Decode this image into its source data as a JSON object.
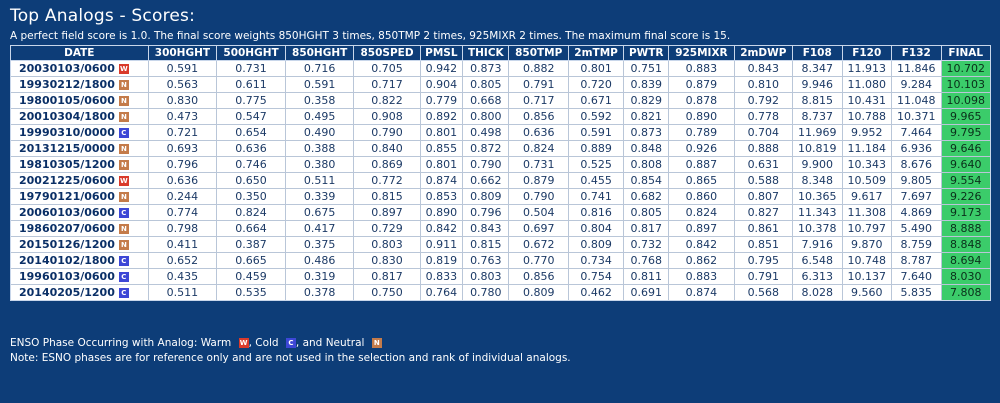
{
  "title": "Top Analogs - Scores:",
  "subtitle": "A perfect field score is 1.0. The final score weights 850HGHT 3 times, 850TMP 2 times, 925MIXR 2 times. The maximum final score is 15.",
  "columns": [
    "DATE",
    "300HGHT",
    "500HGHT",
    "850HGHT",
    "850SPED",
    "PMSL",
    "THICK",
    "850TMP",
    "2mTMP",
    "PWTR",
    "925MIXR",
    "2mDWP",
    "F108",
    "F120",
    "F132",
    "FINAL"
  ],
  "rows": [
    {
      "date": "20030103/0600",
      "phase": "W",
      "values": [
        "0.591",
        "0.731",
        "0.716",
        "0.705",
        "0.942",
        "0.873",
        "0.882",
        "0.801",
        "0.751",
        "0.883",
        "0.843",
        "8.347",
        "11.913",
        "11.846"
      ],
      "final": "10.702"
    },
    {
      "date": "19930212/1800",
      "phase": "N",
      "values": [
        "0.563",
        "0.611",
        "0.591",
        "0.717",
        "0.904",
        "0.805",
        "0.791",
        "0.720",
        "0.839",
        "0.879",
        "0.810",
        "9.946",
        "11.080",
        "9.284"
      ],
      "final": "10.103"
    },
    {
      "date": "19800105/0600",
      "phase": "N",
      "values": [
        "0.830",
        "0.775",
        "0.358",
        "0.822",
        "0.779",
        "0.668",
        "0.717",
        "0.671",
        "0.829",
        "0.878",
        "0.792",
        "8.815",
        "10.431",
        "11.048"
      ],
      "final": "10.098"
    },
    {
      "date": "20010304/1800",
      "phase": "N",
      "values": [
        "0.473",
        "0.547",
        "0.495",
        "0.908",
        "0.892",
        "0.800",
        "0.856",
        "0.592",
        "0.821",
        "0.890",
        "0.778",
        "8.737",
        "10.788",
        "10.371"
      ],
      "final": "9.965"
    },
    {
      "date": "19990310/0000",
      "phase": "C",
      "values": [
        "0.721",
        "0.654",
        "0.490",
        "0.790",
        "0.801",
        "0.498",
        "0.636",
        "0.591",
        "0.873",
        "0.789",
        "0.704",
        "11.969",
        "9.952",
        "7.464"
      ],
      "final": "9.795"
    },
    {
      "date": "20131215/0000",
      "phase": "N",
      "values": [
        "0.693",
        "0.636",
        "0.388",
        "0.840",
        "0.855",
        "0.872",
        "0.824",
        "0.889",
        "0.848",
        "0.926",
        "0.888",
        "10.819",
        "11.184",
        "6.936"
      ],
      "final": "9.646"
    },
    {
      "date": "19810305/1200",
      "phase": "N",
      "values": [
        "0.796",
        "0.746",
        "0.380",
        "0.869",
        "0.801",
        "0.790",
        "0.731",
        "0.525",
        "0.808",
        "0.887",
        "0.631",
        "9.900",
        "10.343",
        "8.676"
      ],
      "final": "9.640"
    },
    {
      "date": "20021225/0600",
      "phase": "W",
      "values": [
        "0.636",
        "0.650",
        "0.511",
        "0.772",
        "0.874",
        "0.662",
        "0.879",
        "0.455",
        "0.854",
        "0.865",
        "0.588",
        "8.348",
        "10.509",
        "9.805"
      ],
      "final": "9.554"
    },
    {
      "date": "19790121/0600",
      "phase": "N",
      "values": [
        "0.244",
        "0.350",
        "0.339",
        "0.815",
        "0.853",
        "0.809",
        "0.790",
        "0.741",
        "0.682",
        "0.860",
        "0.807",
        "10.365",
        "9.617",
        "7.697"
      ],
      "final": "9.226"
    },
    {
      "date": "20060103/0600",
      "phase": "C",
      "values": [
        "0.774",
        "0.824",
        "0.675",
        "0.897",
        "0.890",
        "0.796",
        "0.504",
        "0.816",
        "0.805",
        "0.824",
        "0.827",
        "11.343",
        "11.308",
        "4.869"
      ],
      "final": "9.173"
    },
    {
      "date": "19860207/0600",
      "phase": "N",
      "values": [
        "0.798",
        "0.664",
        "0.417",
        "0.729",
        "0.842",
        "0.843",
        "0.697",
        "0.804",
        "0.817",
        "0.897",
        "0.861",
        "10.378",
        "10.797",
        "5.490"
      ],
      "final": "8.888"
    },
    {
      "date": "20150126/1200",
      "phase": "N",
      "values": [
        "0.411",
        "0.387",
        "0.375",
        "0.803",
        "0.911",
        "0.815",
        "0.672",
        "0.809",
        "0.732",
        "0.842",
        "0.851",
        "7.916",
        "9.870",
        "8.759"
      ],
      "final": "8.848"
    },
    {
      "date": "20140102/1800",
      "phase": "C",
      "values": [
        "0.652",
        "0.665",
        "0.486",
        "0.830",
        "0.819",
        "0.763",
        "0.770",
        "0.734",
        "0.768",
        "0.862",
        "0.795",
        "6.548",
        "10.748",
        "8.787"
      ],
      "final": "8.694"
    },
    {
      "date": "19960103/0600",
      "phase": "C",
      "values": [
        "0.435",
        "0.459",
        "0.319",
        "0.817",
        "0.833",
        "0.803",
        "0.856",
        "0.754",
        "0.811",
        "0.883",
        "0.791",
        "6.313",
        "10.137",
        "7.640"
      ],
      "final": "8.030"
    },
    {
      "date": "20140205/1200",
      "phase": "C",
      "values": [
        "0.511",
        "0.535",
        "0.378",
        "0.750",
        "0.764",
        "0.780",
        "0.809",
        "0.462",
        "0.691",
        "0.874",
        "0.568",
        "8.028",
        "9.560",
        "5.835"
      ],
      "final": "7.808"
    }
  ],
  "legend": {
    "prefix": "ENSO Phase Occurring with Analog: Warm",
    "cold": ", Cold",
    "neutral": ", and Neutral",
    "warm_badge": "W",
    "cold_badge": "C",
    "neutral_badge": "N"
  },
  "note": "Note: ESNO phases are for reference only and are not used in the selection and rank of individual analogs.",
  "colors": {
    "background": "#0d3d78",
    "final_cell": "#3bcc6a",
    "warm": "#d93a2b",
    "cold": "#3d47d6",
    "neutral": "#c47b4a"
  }
}
